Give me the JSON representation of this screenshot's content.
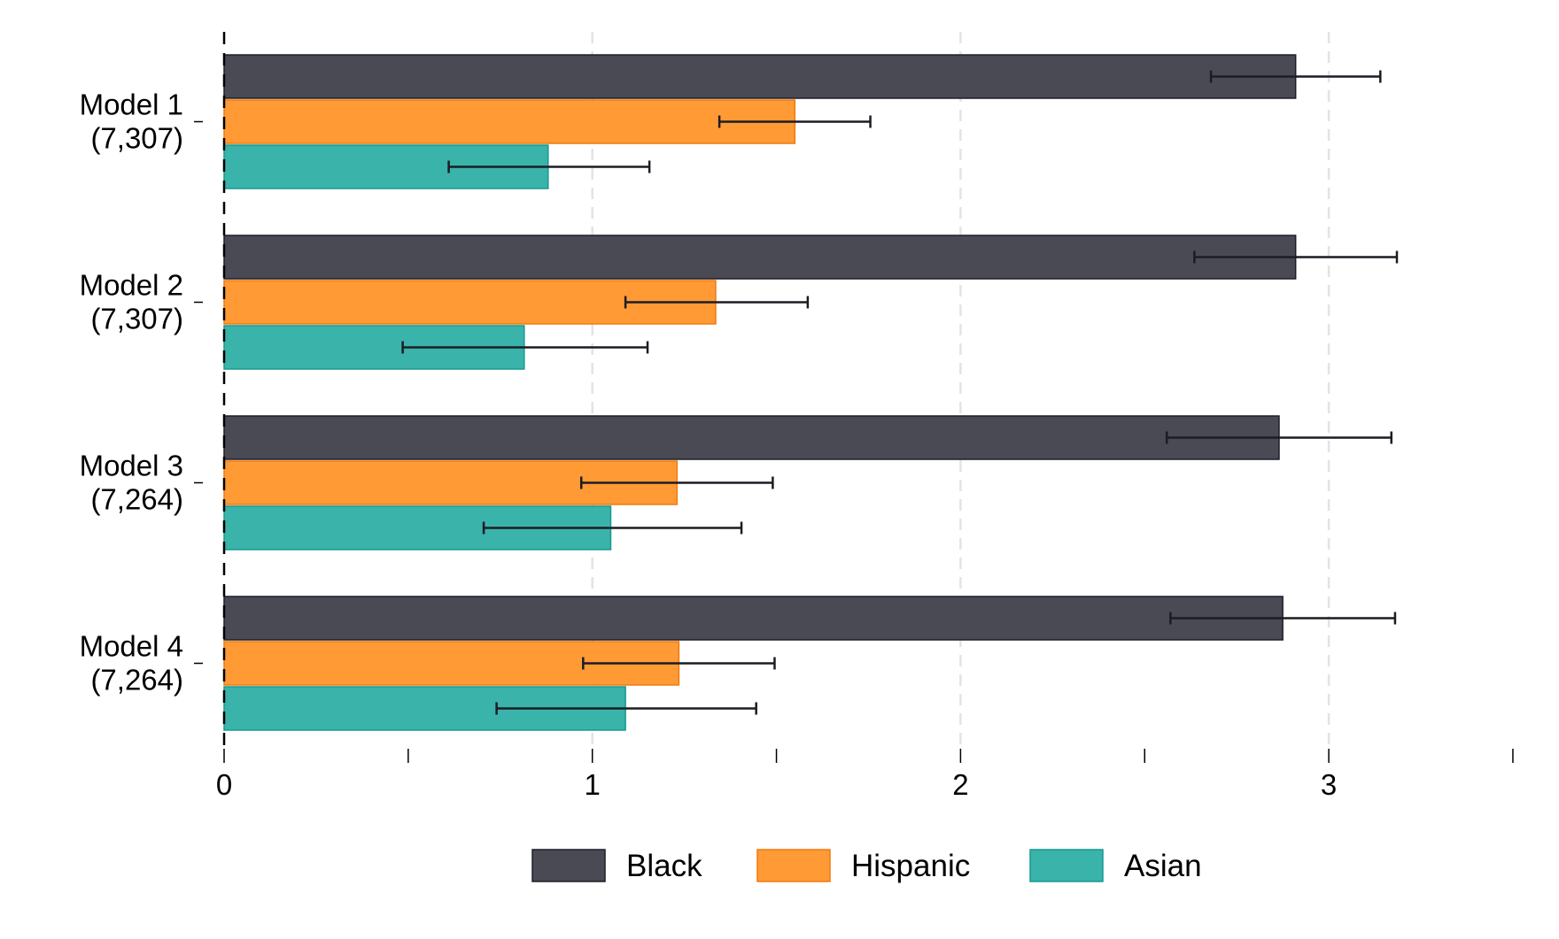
{
  "chart_data": {
    "type": "bar",
    "orientation": "horizontal",
    "categories": [
      [
        "Model 1",
        "(7,307)"
      ],
      [
        "Model 2",
        "(7,307)"
      ],
      [
        "Model 3",
        "(7,264)"
      ],
      [
        "Model 4",
        "(7,264)"
      ]
    ],
    "series": [
      {
        "name": "Black",
        "color": "#4a4a55",
        "edge": "#1e1e26",
        "values": [
          2.91,
          2.91,
          2.865,
          2.875
        ],
        "ci_low": [
          2.68,
          2.635,
          2.56,
          2.57
        ],
        "ci_high": [
          3.14,
          3.185,
          3.17,
          3.18
        ]
      },
      {
        "name": "Hispanic",
        "color": "#ff9a35",
        "edge": "#f07a10",
        "values": [
          1.55,
          1.335,
          1.23,
          1.235
        ],
        "ci_low": [
          1.345,
          1.09,
          0.97,
          0.975
        ],
        "ci_high": [
          1.755,
          1.585,
          1.49,
          1.495
        ]
      },
      {
        "name": "Asian",
        "color": "#3ab3aa",
        "edge": "#179a8f",
        "values": [
          0.88,
          0.815,
          1.05,
          1.09
        ],
        "ci_low": [
          0.61,
          0.485,
          0.705,
          0.74
        ],
        "ci_high": [
          1.155,
          1.15,
          1.405,
          1.445
        ]
      }
    ],
    "xlim": [
      0,
      3.5
    ],
    "xticks": [
      0,
      0.5,
      1,
      1.5,
      2,
      2.5,
      3,
      3.5
    ],
    "xtick_labels": [
      "0",
      "",
      "1",
      "",
      "2",
      "",
      "3",
      ""
    ],
    "xlabel": "",
    "ylabel": "",
    "title": "",
    "grid": "vertical dashed at major ticks",
    "reference_line": 0,
    "legend_position": "bottom-center"
  }
}
